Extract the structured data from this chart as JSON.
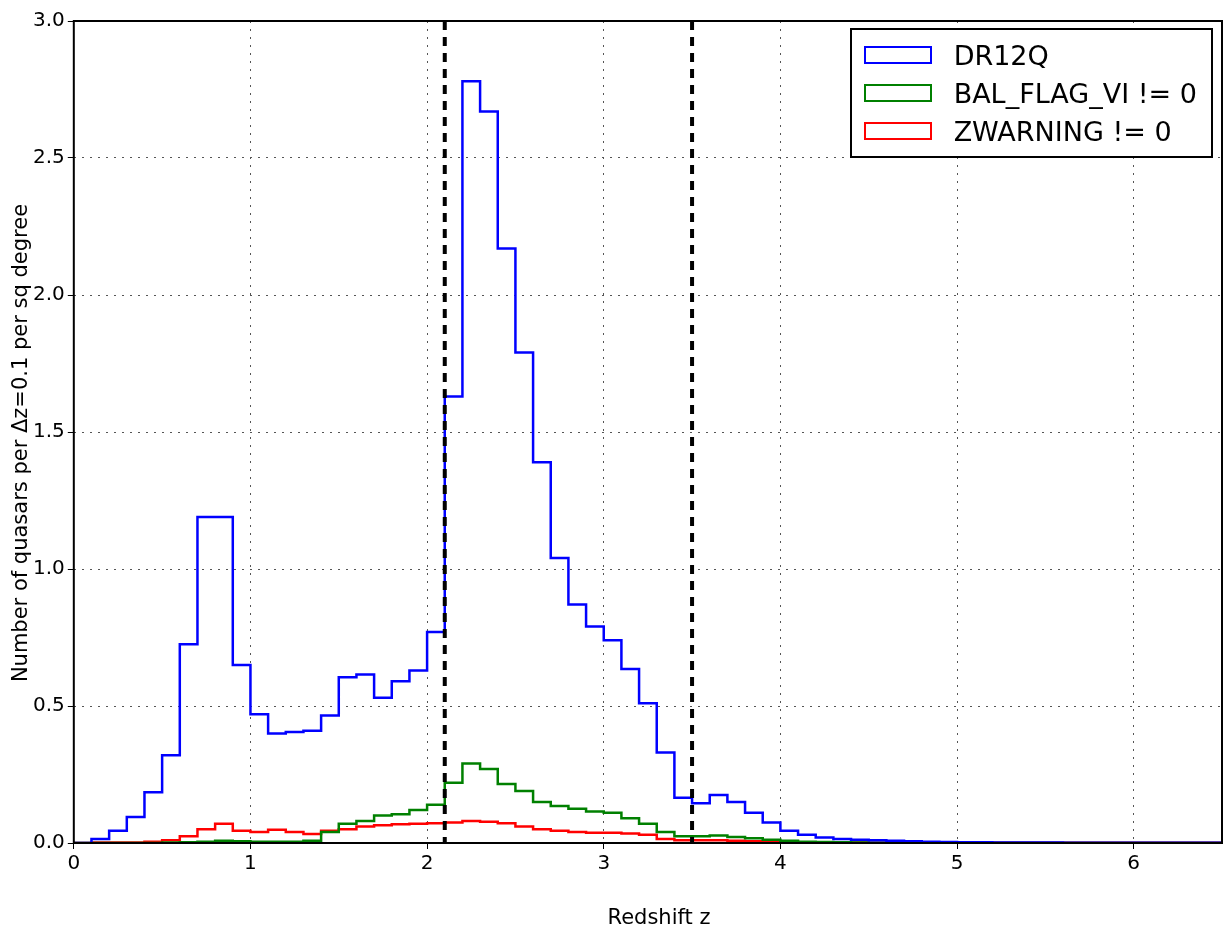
{
  "chart_data": {
    "type": "histogram",
    "xlabel": "Redshift z",
    "ylabel": "Number of quasars per Δz=0.1 per sq degree",
    "bins": [
      0,
      0.1,
      0.2,
      0.3,
      0.4,
      0.5,
      0.6,
      0.7,
      0.8,
      0.9,
      1,
      1.1,
      1.2,
      1.3,
      1.4,
      1.5,
      1.6,
      1.7,
      1.8,
      1.9,
      2,
      2.1,
      2.2,
      2.3,
      2.4,
      2.5,
      2.6,
      2.7,
      2.8,
      2.9,
      3,
      3.1,
      3.2,
      3.3,
      3.4,
      3.5,
      3.6,
      3.7,
      3.8,
      3.9,
      4,
      4.1,
      4.2,
      4.3,
      4.4,
      4.5,
      4.6,
      4.7,
      4.8,
      4.9,
      5,
      5.1,
      5.2,
      5.3,
      5.4,
      5.5,
      5.6,
      5.7,
      5.8,
      5.9,
      6,
      6.1,
      6.2,
      6.3,
      6.4,
      6.5
    ],
    "series": [
      {
        "name": "DR12Q",
        "color": "#0000ff",
        "values": [
          0,
          0.015,
          0.045,
          0.095,
          0.185,
          0.32,
          0.725,
          1.19,
          1.19,
          0.65,
          0.47,
          0.4,
          0.405,
          0.41,
          0.465,
          0.605,
          0.615,
          0.53,
          0.59,
          0.63,
          0.77,
          1.63,
          2.78,
          2.67,
          2.17,
          1.79,
          1.39,
          1.04,
          0.87,
          0.79,
          0.74,
          0.635,
          0.51,
          0.33,
          0.165,
          0.145,
          0.175,
          0.15,
          0.11,
          0.075,
          0.045,
          0.03,
          0.02,
          0.015,
          0.012,
          0.01,
          0.008,
          0.006,
          0.005,
          0.004,
          0.003,
          0.003,
          0.002,
          0.002,
          0.002,
          0.002,
          0.001,
          0.001,
          0.001,
          0.001,
          0.001,
          0.001,
          0.001,
          0.001,
          0.001
        ]
      },
      {
        "name": "BAL_FLAG_VI != 0",
        "color": "#008000",
        "values": [
          0,
          0,
          0,
          0,
          0,
          0.002,
          0.003,
          0.005,
          0.008,
          0.006,
          0.005,
          0.005,
          0.005,
          0.008,
          0.04,
          0.07,
          0.08,
          0.1,
          0.105,
          0.12,
          0.14,
          0.22,
          0.29,
          0.27,
          0.215,
          0.19,
          0.15,
          0.135,
          0.125,
          0.115,
          0.11,
          0.09,
          0.07,
          0.04,
          0.025,
          0.025,
          0.027,
          0.022,
          0.017,
          0.012,
          0.008,
          0.005,
          0.004,
          0.003,
          0.002,
          0.001,
          0.001,
          0.001,
          0.001,
          0.001,
          0,
          0,
          0,
          0,
          0,
          0,
          0,
          0,
          0,
          0,
          0,
          0,
          0,
          0,
          0
        ]
      },
      {
        "name": "ZWARNING != 0",
        "color": "#ff0000",
        "values": [
          0,
          0.002,
          0.002,
          0.002,
          0.005,
          0.01,
          0.025,
          0.05,
          0.07,
          0.045,
          0.04,
          0.048,
          0.04,
          0.033,
          0.045,
          0.05,
          0.06,
          0.065,
          0.068,
          0.07,
          0.072,
          0.075,
          0.08,
          0.078,
          0.072,
          0.06,
          0.05,
          0.045,
          0.04,
          0.037,
          0.037,
          0.035,
          0.03,
          0.015,
          0.01,
          0.01,
          0.01,
          0.008,
          0.006,
          0.005,
          0.004,
          0.003,
          0.002,
          0.002,
          0.002,
          0.001,
          0.001,
          0.001,
          0.001,
          0.001,
          0.001,
          0.001,
          0.001,
          0.001,
          0.001,
          0.001,
          0.001,
          0.001,
          0.001,
          0.001,
          0.001,
          0.001,
          0.001,
          0.001,
          0.001
        ]
      }
    ],
    "xlim": [
      0,
      6.5
    ],
    "xticks": [
      0,
      1,
      2,
      3,
      4,
      5,
      6
    ],
    "ylim": [
      0,
      3
    ],
    "yticks": [
      {
        "value": 0,
        "label": "0.0"
      },
      {
        "value": 0.5,
        "label": "0.5"
      },
      {
        "value": 1,
        "label": "1.0"
      },
      {
        "value": 1.5,
        "label": "1.5"
      },
      {
        "value": 2,
        "label": "2.0"
      },
      {
        "value": 2.5,
        "label": "2.5"
      },
      {
        "value": 3,
        "label": "3.0"
      }
    ],
    "ref_lines": [
      {
        "axis": "x",
        "value": 2.1,
        "color": "#000000",
        "line_style": "dashed"
      },
      {
        "axis": "x",
        "value": 3.5,
        "color": "#000000",
        "line_style": "dashed"
      }
    ],
    "grid": true,
    "legend": "top right"
  }
}
